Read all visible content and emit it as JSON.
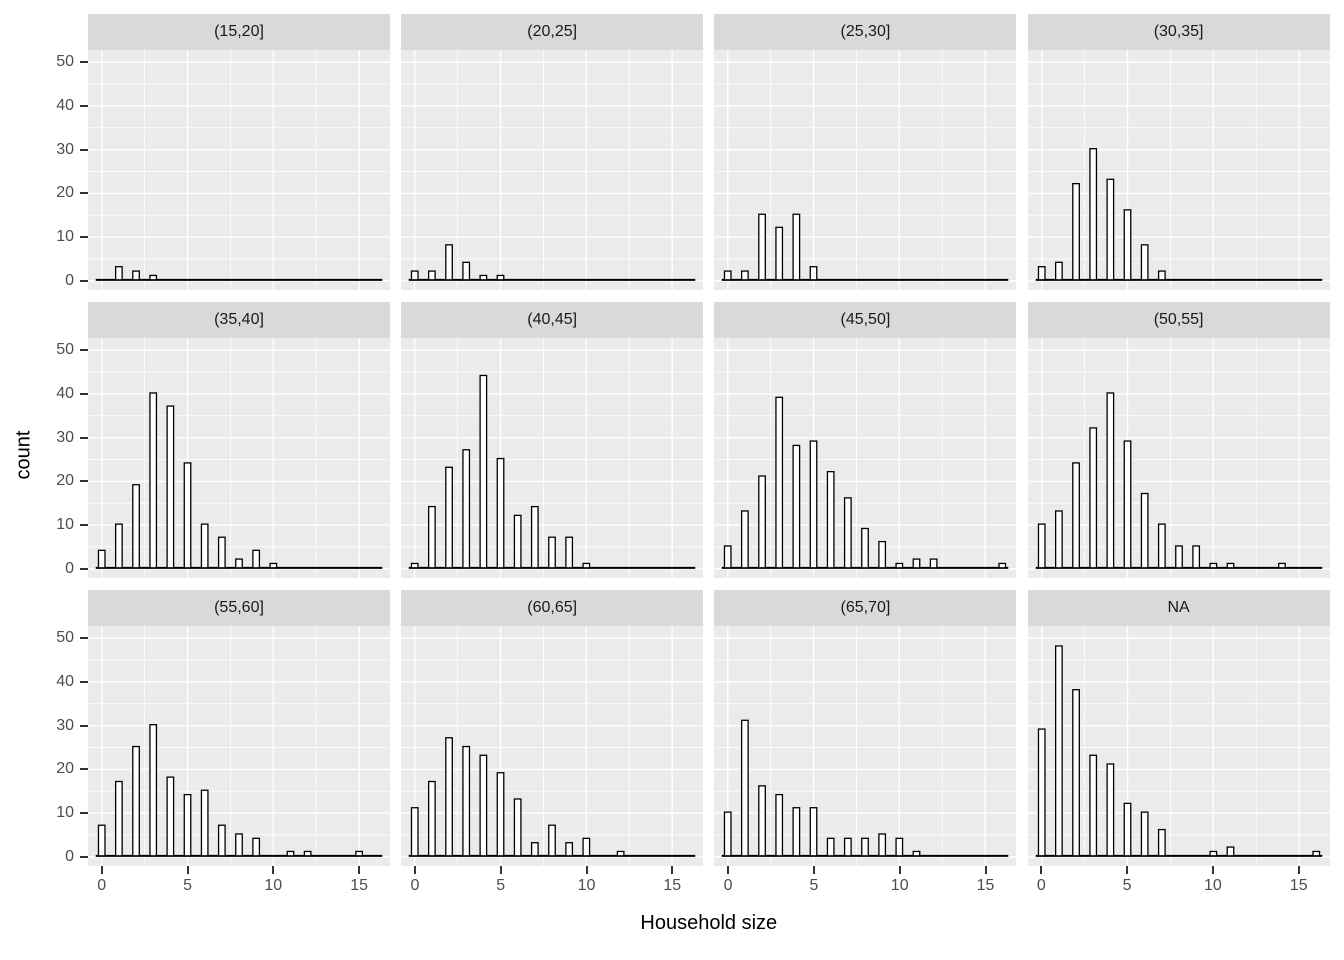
{
  "figure": {
    "x_axis_title": "Household size",
    "y_axis_title": "count",
    "x_tick_labels": [
      "0",
      "5",
      "10",
      "15"
    ],
    "y_tick_labels": [
      "0",
      "10",
      "20",
      "30",
      "40",
      "50"
    ]
  },
  "colors": {
    "page_bg": "#ffffff",
    "panel_bg": "#ebebeb",
    "strip_bg": "#d9d9d9",
    "grid": "#ffffff",
    "bar_fill": "#ffffff",
    "bar_stroke": "#000000",
    "zero_line": "#000000",
    "tick_label": "#4d4d4d",
    "axis_title": "#000000"
  },
  "chart_data": {
    "type": "bar",
    "subtype": "faceted-histogram",
    "title": "",
    "xlabel": "Household size",
    "ylabel": "count",
    "x_ticks": [
      0,
      5,
      10,
      15
    ],
    "y_ticks": [
      0,
      10,
      20,
      30,
      40,
      50
    ],
    "x_minor_ticks": [
      2.5,
      7.5,
      12.5
    ],
    "y_minor_ticks": [
      5,
      15,
      25,
      35,
      45
    ],
    "xlim": [
      -0.8,
      16.8
    ],
    "ylim": [
      -2.1,
      52.8
    ],
    "grid": "on",
    "legend_position": "none",
    "facet_rows": 3,
    "facet_cols": 4,
    "facets": [
      {
        "label": "(15,20]",
        "bars": [
          [
            1,
            3
          ],
          [
            2,
            2
          ],
          [
            3,
            1
          ]
        ]
      },
      {
        "label": "(20,25]",
        "bars": [
          [
            0,
            2
          ],
          [
            1,
            2
          ],
          [
            2,
            8
          ],
          [
            3,
            4
          ],
          [
            4,
            1
          ],
          [
            5,
            1
          ]
        ]
      },
      {
        "label": "(25,30]",
        "bars": [
          [
            0,
            2
          ],
          [
            1,
            2
          ],
          [
            2,
            15
          ],
          [
            3,
            12
          ],
          [
            4,
            15
          ],
          [
            5,
            3
          ]
        ]
      },
      {
        "label": "(30,35]",
        "bars": [
          [
            0,
            3
          ],
          [
            1,
            4
          ],
          [
            2,
            22
          ],
          [
            3,
            30
          ],
          [
            4,
            23
          ],
          [
            5,
            16
          ],
          [
            6,
            8
          ],
          [
            7,
            2
          ]
        ]
      },
      {
        "label": "(35,40]",
        "bars": [
          [
            0,
            4
          ],
          [
            1,
            10
          ],
          [
            2,
            19
          ],
          [
            3,
            40
          ],
          [
            4,
            37
          ],
          [
            5,
            24
          ],
          [
            6,
            10
          ],
          [
            7,
            7
          ],
          [
            8,
            2
          ],
          [
            9,
            4
          ],
          [
            10,
            1
          ]
        ]
      },
      {
        "label": "(40,45]",
        "bars": [
          [
            0,
            1
          ],
          [
            1,
            14
          ],
          [
            2,
            23
          ],
          [
            3,
            27
          ],
          [
            4,
            44
          ],
          [
            5,
            25
          ],
          [
            6,
            12
          ],
          [
            7,
            14
          ],
          [
            8,
            7
          ],
          [
            9,
            7
          ],
          [
            10,
            1
          ]
        ]
      },
      {
        "label": "(45,50]",
        "bars": [
          [
            0,
            5
          ],
          [
            1,
            13
          ],
          [
            2,
            21
          ],
          [
            3,
            39
          ],
          [
            4,
            28
          ],
          [
            5,
            29
          ],
          [
            6,
            22
          ],
          [
            7,
            16
          ],
          [
            8,
            9
          ],
          [
            9,
            6
          ],
          [
            10,
            1
          ],
          [
            11,
            2
          ],
          [
            12,
            2
          ],
          [
            16,
            1
          ]
        ]
      },
      {
        "label": "(50,55]",
        "bars": [
          [
            0,
            10
          ],
          [
            1,
            13
          ],
          [
            2,
            24
          ],
          [
            3,
            32
          ],
          [
            4,
            40
          ],
          [
            5,
            29
          ],
          [
            6,
            17
          ],
          [
            7,
            10
          ],
          [
            8,
            5
          ],
          [
            9,
            5
          ],
          [
            10,
            1
          ],
          [
            11,
            1
          ],
          [
            14,
            1
          ]
        ]
      },
      {
        "label": "(55,60]",
        "bars": [
          [
            0,
            7
          ],
          [
            1,
            17
          ],
          [
            2,
            25
          ],
          [
            3,
            30
          ],
          [
            4,
            18
          ],
          [
            5,
            14
          ],
          [
            6,
            15
          ],
          [
            7,
            7
          ],
          [
            8,
            5
          ],
          [
            9,
            4
          ],
          [
            11,
            1
          ],
          [
            12,
            1
          ],
          [
            15,
            1
          ]
        ]
      },
      {
        "label": "(60,65]",
        "bars": [
          [
            0,
            11
          ],
          [
            1,
            17
          ],
          [
            2,
            27
          ],
          [
            3,
            25
          ],
          [
            4,
            23
          ],
          [
            5,
            19
          ],
          [
            6,
            13
          ],
          [
            7,
            3
          ],
          [
            8,
            7
          ],
          [
            9,
            3
          ],
          [
            10,
            4
          ],
          [
            12,
            1
          ]
        ]
      },
      {
        "label": "(65,70]",
        "bars": [
          [
            0,
            10
          ],
          [
            1,
            31
          ],
          [
            2,
            16
          ],
          [
            3,
            14
          ],
          [
            4,
            11
          ],
          [
            5,
            11
          ],
          [
            6,
            4
          ],
          [
            7,
            4
          ],
          [
            8,
            4
          ],
          [
            9,
            5
          ],
          [
            10,
            4
          ],
          [
            11,
            1
          ]
        ]
      },
      {
        "label": "NA",
        "bars": [
          [
            0,
            29
          ],
          [
            1,
            48
          ],
          [
            2,
            38
          ],
          [
            3,
            23
          ],
          [
            4,
            21
          ],
          [
            5,
            12
          ],
          [
            6,
            10
          ],
          [
            7,
            6
          ],
          [
            10,
            1
          ],
          [
            11,
            2
          ],
          [
            16,
            1
          ]
        ]
      }
    ]
  }
}
